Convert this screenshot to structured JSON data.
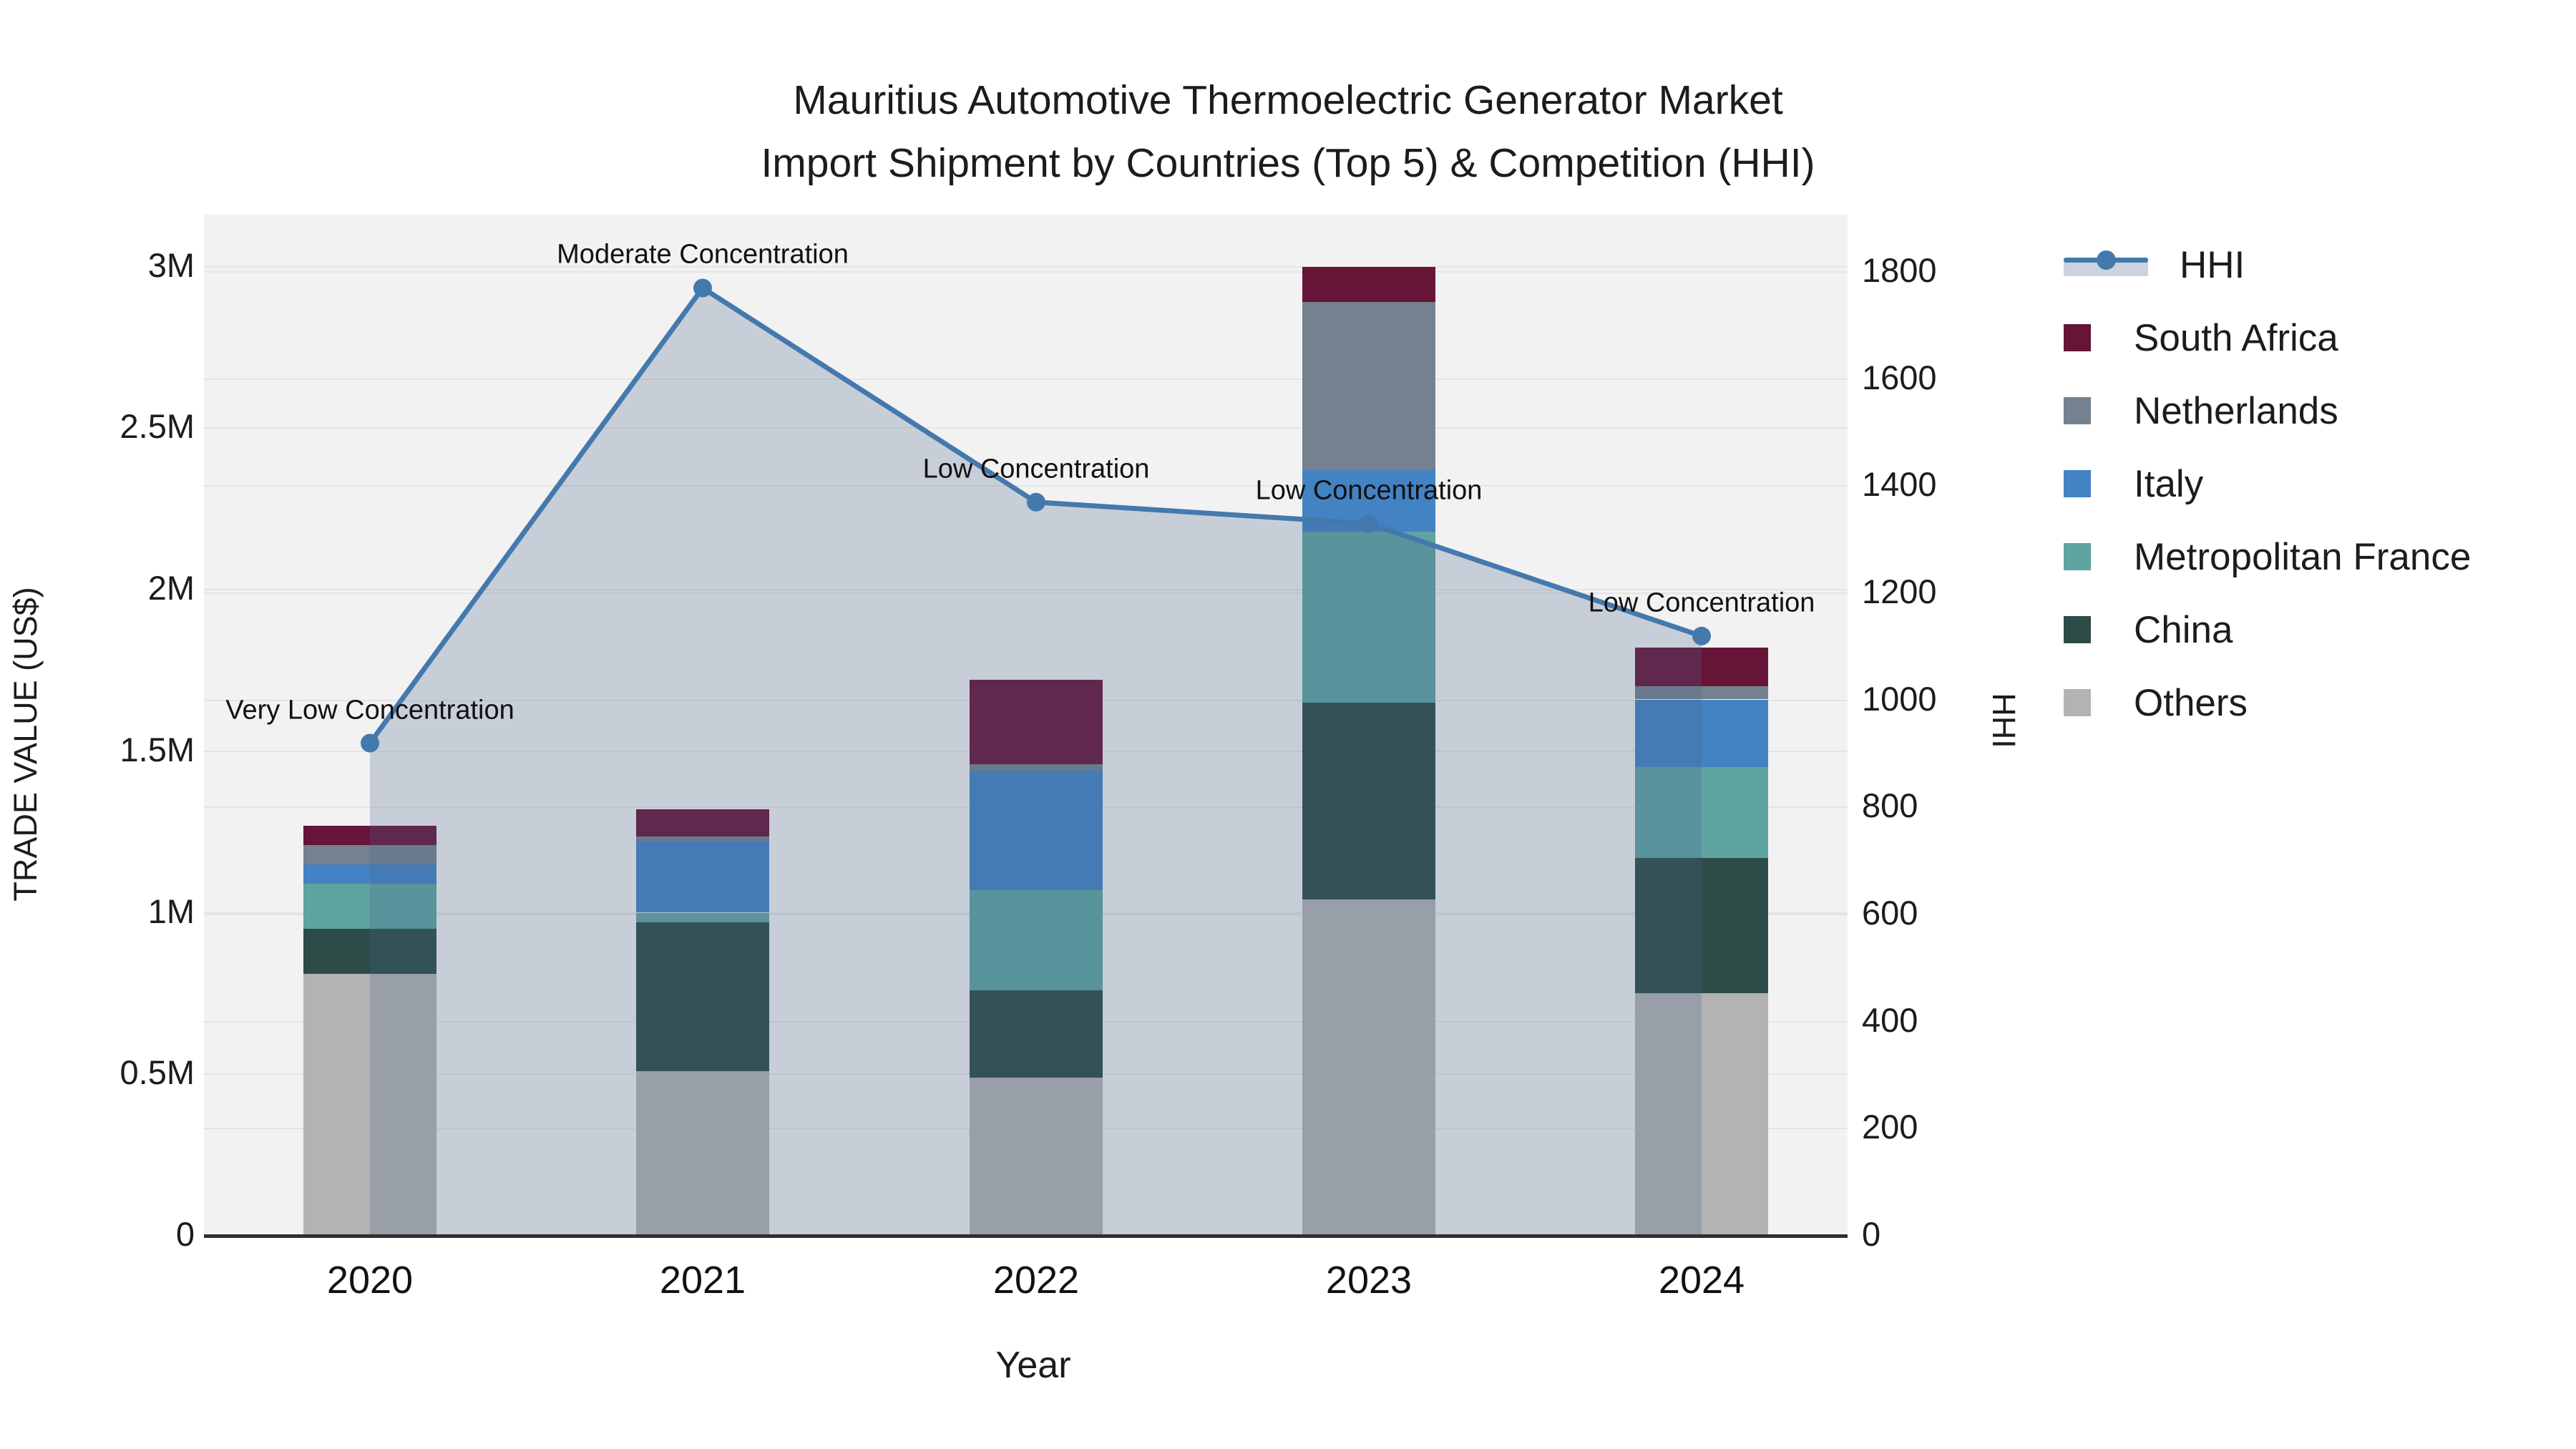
{
  "title": {
    "line1": "Mauritius Automotive Thermoelectric Generator Market",
    "line2": "Import Shipment by Countries (Top 5) & Competition (HHI)"
  },
  "axes": {
    "x_title": "Year",
    "y_left_title": "TRADE VALUE (US$)",
    "y_right_title": "HHI",
    "y_left_ticks": [
      {
        "label": "0",
        "value": 0
      },
      {
        "label": "0.5M",
        "value": 0.5
      },
      {
        "label": "1M",
        "value": 1
      },
      {
        "label": "1.5M",
        "value": 1.5
      },
      {
        "label": "2M",
        "value": 2
      },
      {
        "label": "2.5M",
        "value": 2.5
      },
      {
        "label": "3M",
        "value": 3
      }
    ],
    "y_right_ticks": [
      {
        "label": "0",
        "value": 0
      },
      {
        "label": "200",
        "value": 200
      },
      {
        "label": "400",
        "value": 400
      },
      {
        "label": "600",
        "value": 600
      },
      {
        "label": "800",
        "value": 800
      },
      {
        "label": "1000",
        "value": 1000
      },
      {
        "label": "1200",
        "value": 1200
      },
      {
        "label": "1400",
        "value": 1400
      },
      {
        "label": "1600",
        "value": 1600
      },
      {
        "label": "1800",
        "value": 1800
      }
    ]
  },
  "colors": {
    "south_africa": "#671537",
    "netherlands": "#74828f",
    "italy": "#4383c3",
    "metropolitan_france": "#5fa3a0",
    "china": "#2d4c47",
    "others": "#b3b3b2",
    "hhi_line": "#4479ae",
    "hhi_fill": "rgba(70,100,140,0.25)",
    "legend_band": "#cdd3de",
    "plot_bg": "#f2f2f2",
    "grid": "#e4e4e4",
    "axis_line": "#303030"
  },
  "chart_data": {
    "type": "combo_stacked_bar_line",
    "title": "Mauritius Automotive Thermoelectric Generator Market — Import Shipment by Countries (Top 5) & Competition (HHI)",
    "categories": [
      "2020",
      "2021",
      "2022",
      "2023",
      "2024"
    ],
    "xlabel": "Year",
    "ylabel_left": "TRADE VALUE (US$)",
    "ylabel_right": "HHI",
    "ylim_left_millions": [
      0,
      3
    ],
    "ylim_right": [
      0,
      1800
    ],
    "grid": true,
    "legend_position": "right",
    "bar_unit": "million US$",
    "series": [
      {
        "name": "Others",
        "color_key": "others",
        "values": [
          0.81,
          0.51,
          0.49,
          1.04,
          0.75
        ]
      },
      {
        "name": "China",
        "color_key": "china",
        "values": [
          0.14,
          0.46,
          0.27,
          0.61,
          0.42
        ]
      },
      {
        "name": "Metropolitan France",
        "color_key": "metropolitan_france",
        "values": [
          0.14,
          0.03,
          0.31,
          0.53,
          0.28
        ]
      },
      {
        "name": "Italy",
        "color_key": "italy",
        "values": [
          0.06,
          0.22,
          0.37,
          0.19,
          0.21
        ]
      },
      {
        "name": "Netherlands",
        "color_key": "netherlands",
        "values": [
          0.06,
          0.015,
          0.02,
          0.52,
          0.04
        ]
      },
      {
        "name": "South Africa",
        "color_key": "south_africa",
        "values": [
          0.06,
          0.085,
          0.26,
          0.11,
          0.12
        ]
      }
    ],
    "line_series": {
      "name": "HHI",
      "axis": "right",
      "values": [
        920,
        1770,
        1370,
        1330,
        1120
      ]
    },
    "annotations": [
      {
        "text": "Very Low Concentration",
        "category": "2020"
      },
      {
        "text": "Moderate Concentration",
        "category": "2021"
      },
      {
        "text": "Low Concentration",
        "category": "2022"
      },
      {
        "text": "Low Concentration",
        "category": "2023"
      },
      {
        "text": "Low Concentration",
        "category": "2024"
      }
    ]
  },
  "legend": {
    "items": [
      {
        "label": "HHI",
        "type": "line",
        "color_key": "hhi_line"
      },
      {
        "label": "South Africa",
        "type": "swatch",
        "color_key": "south_africa"
      },
      {
        "label": "Netherlands",
        "type": "swatch",
        "color_key": "netherlands"
      },
      {
        "label": "Italy",
        "type": "swatch",
        "color_key": "italy"
      },
      {
        "label": "Metropolitan France",
        "type": "swatch",
        "color_key": "metropolitan_france"
      },
      {
        "label": "China",
        "type": "swatch",
        "color_key": "china"
      },
      {
        "label": "Others",
        "type": "swatch",
        "color_key": "others"
      }
    ]
  }
}
